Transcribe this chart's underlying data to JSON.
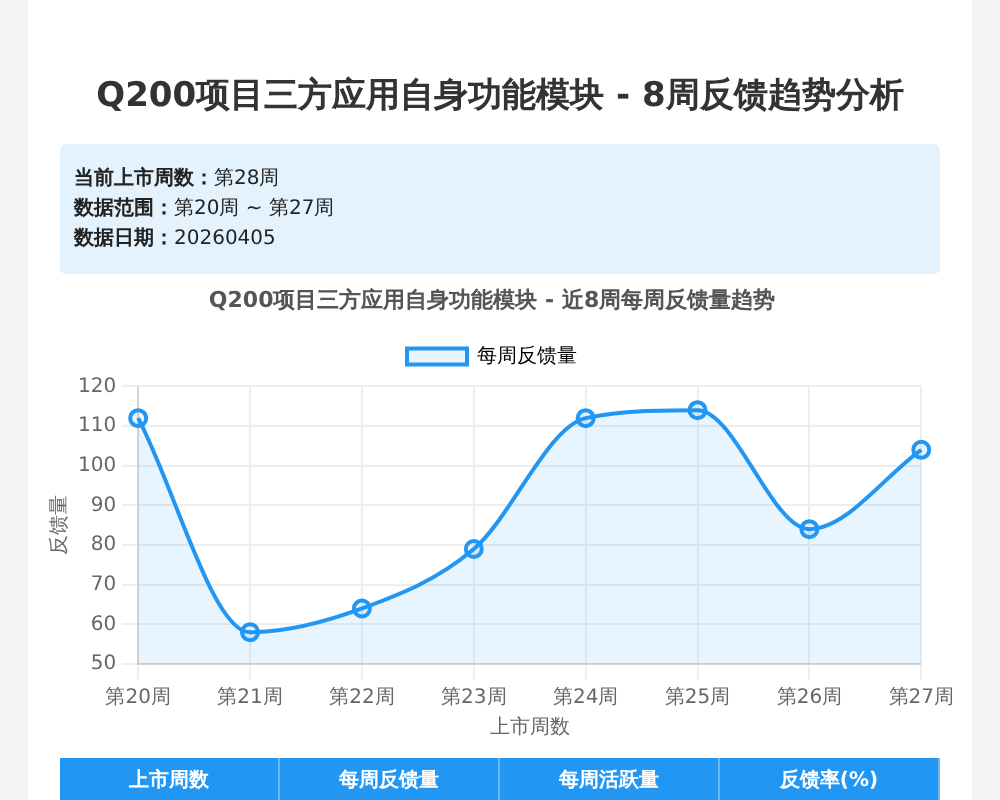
{
  "chart_data": {
    "type": "area",
    "title": "Q200项目三方应用自身功能模块 - 8周反馈趋势分析",
    "subtitle": "Q200项目三方应用自身功能模块 - 近8周每周反馈量趋势",
    "xlabel": "上市周数",
    "ylabel": "反馈量",
    "categories": [
      "第20周",
      "第21周",
      "第22周",
      "第23周",
      "第24周",
      "第25周",
      "第26周",
      "第27周"
    ],
    "series": [
      {
        "name": "每周反馈量",
        "color": "#2196f3",
        "values": [
          112,
          58,
          64,
          79,
          112,
          114,
          84,
          104
        ]
      }
    ],
    "ylim": [
      50,
      120
    ],
    "yticks": [
      50,
      60,
      70,
      80,
      90,
      100,
      110,
      120
    ],
    "grid": true,
    "legend": "top",
    "marker": "circle",
    "line_style": "solid",
    "annotations": [
      "当前上市周数：第28周",
      "数据范围：第20周 ~ 第27周",
      "数据日期：20260405",
      "上市周数",
      "每周反馈量",
      "每周活跃量",
      "反馈率(%)"
    ]
  }
}
